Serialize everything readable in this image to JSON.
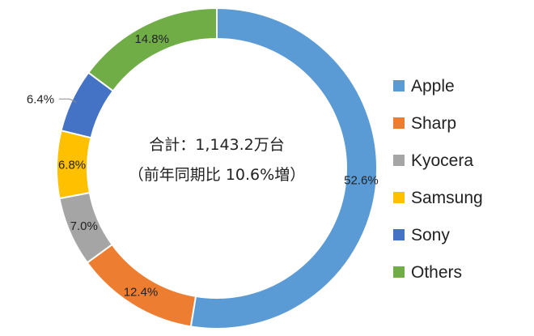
{
  "chart_data": {
    "type": "pie",
    "style": "donut",
    "title": "",
    "center_text": [
      "合計：1,143.2万台",
      "（前年同期比 10.6%増）"
    ],
    "categories": [
      "Apple",
      "Sharp",
      "Kyocera",
      "Samsung",
      "Sony",
      "Others"
    ],
    "values": [
      52.6,
      12.4,
      7.0,
      6.8,
      6.4,
      14.8
    ],
    "value_labels": [
      "52.6%",
      "12.4%",
      "7.0%",
      "6.8%",
      "6.4%",
      "14.8%"
    ],
    "colors": [
      "#5b9bd5",
      "#ed7d31",
      "#a5a5a5",
      "#ffc000",
      "#4472c4",
      "#70ad47"
    ],
    "legend_position": "right",
    "start_angle": "12 o'clock",
    "direction": "clockwise"
  }
}
